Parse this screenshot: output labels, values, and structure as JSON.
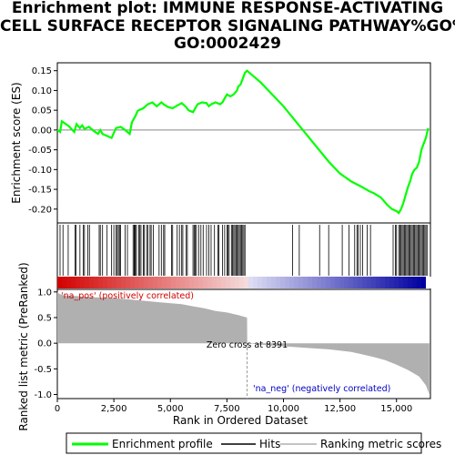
{
  "title_lines": [
    "Enrichment plot: IMMUNE RESPONSE-ACTIVATING",
    "CELL SURFACE RECEPTOR SIGNALING PATHWAY%GO%",
    "GO:0002429"
  ],
  "chart_data": {
    "type": "line",
    "top_panel": {
      "ylabel": "Enrichment score (ES)",
      "ylim": [
        -0.235,
        0.17
      ],
      "yticks": [
        0.15,
        0.1,
        0.05,
        0.0,
        -0.05,
        -0.1,
        -0.15,
        -0.2
      ],
      "ytick_labels": [
        "0.15",
        "0.10",
        "0.05",
        "0.00",
        "-0.05",
        "-0.10",
        "-0.15",
        "-0.20"
      ],
      "grid": false,
      "series": [
        {
          "name": "Enrichment profile",
          "color": "#00ff00",
          "x": [
            0,
            120,
            200,
            500,
            750,
            850,
            1000,
            1100,
            1200,
            1400,
            1600,
            1800,
            1900,
            2000,
            2200,
            2400,
            2600,
            2800,
            3000,
            3200,
            3300,
            3450,
            3550,
            3600,
            3800,
            4000,
            4200,
            4400,
            4600,
            4700,
            4900,
            5100,
            5300,
            5500,
            5700,
            5800,
            6000,
            6200,
            6400,
            6600,
            6700,
            6800,
            7000,
            7200,
            7300,
            7400,
            7500,
            7650,
            7800,
            7950,
            8000,
            8100,
            8200,
            8300,
            8391,
            9000,
            10000,
            11000,
            12000,
            12500,
            13000,
            13500,
            13800,
            14000,
            14300,
            14600,
            14800,
            15000,
            15100,
            15200,
            15300,
            15400,
            15500,
            15600,
            15700,
            15800,
            15900,
            16000,
            16100,
            16200,
            16300,
            16400
          ],
          "y": [
            0.0,
            -0.005,
            0.022,
            0.01,
            -0.005,
            0.015,
            0.005,
            0.012,
            0.003,
            0.008,
            -0.002,
            -0.01,
            0.0,
            -0.01,
            -0.015,
            -0.02,
            0.005,
            0.008,
            0.0,
            -0.01,
            0.02,
            0.035,
            0.048,
            0.05,
            0.055,
            0.065,
            0.07,
            0.06,
            0.07,
            0.065,
            0.058,
            0.055,
            0.062,
            0.068,
            0.058,
            0.05,
            0.045,
            0.065,
            0.07,
            0.068,
            0.06,
            0.065,
            0.07,
            0.065,
            0.07,
            0.08,
            0.09,
            0.085,
            0.09,
            0.1,
            0.11,
            0.115,
            0.13,
            0.145,
            0.15,
            0.12,
            0.06,
            -0.01,
            -0.08,
            -0.11,
            -0.13,
            -0.145,
            -0.155,
            -0.16,
            -0.17,
            -0.19,
            -0.2,
            -0.205,
            -0.21,
            -0.2,
            -0.185,
            -0.165,
            -0.145,
            -0.13,
            -0.11,
            -0.1,
            -0.095,
            -0.08,
            -0.05,
            -0.035,
            -0.02,
            0.005
          ]
        }
      ]
    },
    "hits_panel": {
      "legend_name": "Hits",
      "hit_ranks": [
        120,
        250,
        480,
        780,
        830,
        1000,
        1150,
        1200,
        1350,
        1420,
        1850,
        1900,
        2000,
        2200,
        2400,
        2500,
        2600,
        2650,
        2700,
        2750,
        2800,
        3000,
        3100,
        3350,
        3400,
        3420,
        3450,
        3500,
        3600,
        3650,
        3700,
        3800,
        3850,
        3950,
        4000,
        4100,
        4150,
        4250,
        4500,
        4600,
        4700,
        4750,
        5050,
        5100,
        5300,
        5400,
        5500,
        5550,
        5700,
        5750,
        6000,
        6050,
        6100,
        6150,
        6250,
        6350,
        6450,
        6600,
        6700,
        6800,
        6950,
        7100,
        7150,
        7300,
        7400,
        7500,
        7550,
        7600,
        7700,
        7750,
        7800,
        7850,
        7900,
        7950,
        8000,
        8050,
        8100,
        8150,
        8200,
        8250,
        8300,
        10400,
        10700,
        11600,
        12000,
        12600,
        12900,
        13150,
        13250,
        13300,
        13400,
        13500,
        13700,
        13850,
        14850,
        14950,
        15000,
        15100,
        15150,
        15200,
        15250,
        15300,
        15350,
        15400,
        15450,
        15500,
        15550,
        15600,
        15650,
        15700,
        15750,
        15800,
        15850,
        15900,
        15950,
        16000,
        16050,
        16100,
        16150,
        16200,
        16250,
        16300,
        16350
      ]
    },
    "bottom_panel": {
      "ylabel": "Ranked list metric (PreRanked)",
      "xlabel": "Rank in Ordered Dataset",
      "ylim": [
        -1.08,
        1.05
      ],
      "yticks": [
        1.0,
        0.5,
        0.0,
        -0.5,
        -1.0
      ],
      "ytick_labels": [
        "1.0",
        "0.5",
        "0.0",
        "-0.5",
        "-1.0"
      ],
      "xlim": [
        0,
        16500
      ],
      "xticks": [
        0,
        2500,
        5000,
        7500,
        10000,
        12500,
        15000
      ],
      "xtick_labels": [
        "0",
        "2,500",
        "5,000",
        "7,500",
        "10,000",
        "12,500",
        "15,000"
      ],
      "metric_name": "Ranking metric scores",
      "metric_x": [
        0,
        100,
        300,
        800,
        1500,
        2500,
        3500,
        4500,
        5500,
        6000,
        6500,
        7000,
        7500,
        8000,
        8391,
        8400,
        9000,
        10000,
        11000,
        12000,
        13000,
        13500,
        14000,
        14500,
        15000,
        15500,
        16000,
        16300,
        16450
      ],
      "metric_y": [
        1.0,
        0.96,
        0.93,
        0.92,
        0.9,
        0.88,
        0.84,
        0.8,
        0.76,
        0.72,
        0.68,
        0.63,
        0.6,
        0.55,
        0.5,
        0.0,
        -0.03,
        -0.06,
        -0.09,
        -0.12,
        -0.17,
        -0.22,
        -0.27,
        -0.33,
        -0.42,
        -0.52,
        -0.65,
        -0.82,
        -1.0
      ],
      "zero_cross_label": "Zero cross at 8391",
      "zero_cross_rank": 8391,
      "pos_label": "'na_pos' (positively correlated)",
      "neg_label": "'na_neg' (negatively correlated)"
    },
    "legend": [
      {
        "name": "Enrichment profile",
        "color": "#00ff00"
      },
      {
        "name": "Hits",
        "color": "#000000"
      },
      {
        "name": "Ranking metric scores",
        "color": "#b0b0b0"
      }
    ]
  }
}
